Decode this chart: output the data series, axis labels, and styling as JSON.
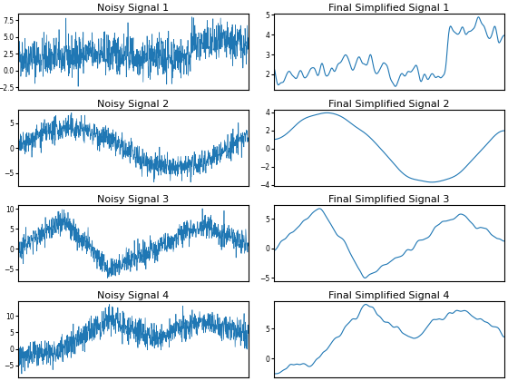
{
  "titles": [
    "Noisy Signal 1",
    "Final Simplified Signal 1",
    "Noisy Signal 2",
    "Final Simplified Signal 2",
    "Noisy Signal 3",
    "Final Simplified Signal 3",
    "Noisy Signal 4",
    "Final Simplified Signal 4"
  ],
  "line_color": "#1f77b4",
  "figsize": [
    5.6,
    4.2
  ],
  "dpi": 100,
  "npoints": 1000,
  "seed": 42,
  "background_color": "#ffffff",
  "title_fontsize": 8
}
